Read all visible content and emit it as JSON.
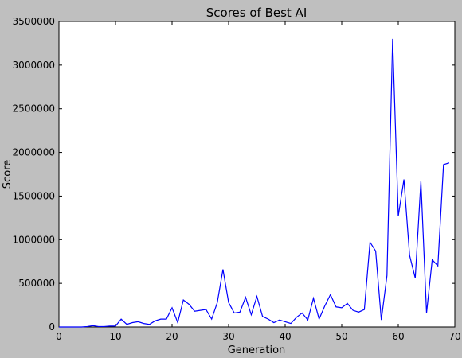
{
  "chart_data": {
    "type": "line",
    "title": "Scores of Best AI",
    "xlabel": "Generation",
    "ylabel": "Score",
    "xlim": [
      0,
      70
    ],
    "ylim": [
      0,
      3500000
    ],
    "xticks": [
      "0",
      "10",
      "20",
      "30",
      "40",
      "50",
      "60",
      "70"
    ],
    "yticks": [
      "0",
      "500000",
      "1000000",
      "1500000",
      "2000000",
      "2500000",
      "3000000",
      "3500000"
    ],
    "grid": false,
    "line_color": "#0000ff",
    "background": "#bfbfbf",
    "plot_background": "#ffffff",
    "series": [
      {
        "x": [
          0,
          1,
          2,
          3,
          4,
          5,
          6,
          7,
          8,
          9,
          10,
          11,
          12,
          13,
          14,
          15,
          16,
          17,
          18,
          19,
          20,
          21,
          22,
          23,
          24,
          25,
          26,
          27,
          28,
          29,
          30,
          31,
          32,
          33,
          34,
          35,
          36,
          37,
          38,
          39,
          40,
          41,
          42,
          43,
          44,
          45,
          46,
          47,
          48,
          49,
          50,
          51,
          52,
          53,
          54,
          55,
          56,
          57,
          58,
          59,
          60,
          61,
          62,
          63,
          64,
          65,
          66,
          67,
          68,
          69
        ],
        "values": [
          0,
          0,
          0,
          0,
          0,
          5000,
          15000,
          5000,
          5000,
          10000,
          10000,
          90000,
          30000,
          50000,
          60000,
          40000,
          30000,
          70000,
          90000,
          90000,
          220000,
          50000,
          310000,
          260000,
          180000,
          190000,
          200000,
          90000,
          280000,
          660000,
          280000,
          160000,
          170000,
          340000,
          140000,
          350000,
          120000,
          90000,
          50000,
          80000,
          60000,
          40000,
          110000,
          160000,
          80000,
          330000,
          90000,
          240000,
          370000,
          230000,
          220000,
          270000,
          190000,
          170000,
          200000,
          970000,
          870000,
          80000,
          590000,
          3300000,
          1270000,
          1690000,
          820000,
          560000,
          1670000,
          160000,
          770000,
          700000,
          1860000,
          1880000
        ]
      }
    ]
  }
}
